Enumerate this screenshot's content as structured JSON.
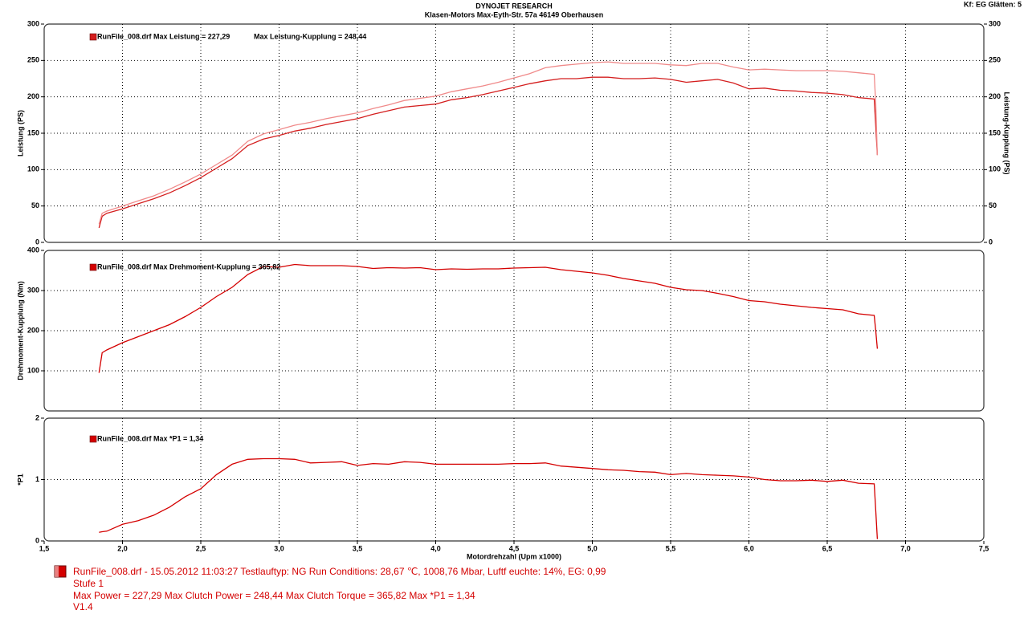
{
  "header": {
    "title": "DYNOJET RESEARCH",
    "subtitle": "Klasen-Motors   Max-Eyth-Str. 57a   46149 Oberhausen",
    "settings": "Kf: EG  Glätten: 5"
  },
  "chart_data": [
    {
      "type": "line",
      "ylabel": "Leistung (PS)",
      "y2label": "Leistung-Kupplung (PS)",
      "ylim": [
        0,
        300
      ],
      "yticks": [
        0,
        50,
        100,
        150,
        200,
        250,
        300
      ],
      "y2lim": [
        0,
        300
      ],
      "y2ticks": [
        0,
        50,
        100,
        150,
        200,
        250,
        300
      ],
      "grid": true,
      "x": [
        1.85,
        1.87,
        1.9,
        2.0,
        2.1,
        2.2,
        2.3,
        2.4,
        2.5,
        2.6,
        2.7,
        2.8,
        2.9,
        3.0,
        3.1,
        3.2,
        3.3,
        3.4,
        3.5,
        3.6,
        3.7,
        3.8,
        3.9,
        4.0,
        4.1,
        4.2,
        4.3,
        4.4,
        4.5,
        4.6,
        4.7,
        4.8,
        4.9,
        5.0,
        5.1,
        5.2,
        5.3,
        5.4,
        5.5,
        5.6,
        5.7,
        5.8,
        5.9,
        6.0,
        6.1,
        6.2,
        6.3,
        6.4,
        6.5,
        6.6,
        6.7,
        6.8,
        6.81,
        6.82
      ],
      "series": [
        {
          "name": "RunFile_008.drf Max Leistung = 227,29",
          "color": "#d41e1e",
          "values": [
            20,
            36,
            40,
            46,
            53,
            60,
            68,
            78,
            89,
            102,
            115,
            133,
            142,
            147,
            153,
            157,
            162,
            166,
            170,
            176,
            181,
            186,
            188,
            190,
            196,
            199,
            203,
            208,
            213,
            218,
            222,
            225,
            225,
            227,
            227,
            225,
            225,
            226,
            224,
            220,
            222,
            224,
            219,
            211,
            212,
            209,
            208,
            206,
            205,
            203,
            199,
            197,
            160,
            120
          ]
        },
        {
          "name": "Max Leistung-Kupplung = 248,44",
          "color": "#f08a8a",
          "axis": "y2",
          "values": [
            25,
            40,
            43,
            50,
            57,
            64,
            73,
            83,
            94,
            107,
            120,
            139,
            149,
            155,
            161,
            165,
            170,
            174,
            178,
            184,
            189,
            195,
            198,
            201,
            207,
            211,
            215,
            220,
            226,
            232,
            240,
            243,
            245,
            247,
            248,
            246,
            246,
            246,
            244,
            243,
            246,
            246,
            241,
            237,
            238,
            237,
            236,
            236,
            236,
            235,
            233,
            231,
            190,
            120
          ]
        }
      ]
    },
    {
      "type": "line",
      "ylabel": "Drehmoment-Kupplung (Nm)",
      "ylim": [
        0,
        400
      ],
      "yticks": [
        100,
        200,
        300,
        400
      ],
      "grid": true,
      "x": [
        1.85,
        1.87,
        1.9,
        2.0,
        2.1,
        2.2,
        2.3,
        2.4,
        2.5,
        2.6,
        2.7,
        2.8,
        2.9,
        3.0,
        3.1,
        3.2,
        3.3,
        3.4,
        3.5,
        3.6,
        3.7,
        3.8,
        3.9,
        4.0,
        4.1,
        4.2,
        4.3,
        4.4,
        4.5,
        4.6,
        4.7,
        4.8,
        4.9,
        5.0,
        5.1,
        5.2,
        5.3,
        5.4,
        5.5,
        5.6,
        5.7,
        5.8,
        5.9,
        6.0,
        6.1,
        6.2,
        6.3,
        6.4,
        6.5,
        6.6,
        6.7,
        6.8,
        6.81,
        6.82
      ],
      "series": [
        {
          "name": "RunFile_008.drf Max Drehmoment-Kupplung = 365,82",
          "color": "#d40000",
          "values": [
            95,
            145,
            152,
            170,
            185,
            200,
            215,
            235,
            258,
            285,
            308,
            340,
            360,
            358,
            365,
            362,
            362,
            362,
            360,
            355,
            357,
            356,
            357,
            352,
            354,
            353,
            354,
            354,
            356,
            357,
            358,
            352,
            348,
            344,
            338,
            330,
            324,
            318,
            308,
            302,
            300,
            293,
            285,
            275,
            272,
            266,
            262,
            258,
            255,
            252,
            242,
            238,
            200,
            155
          ]
        }
      ]
    },
    {
      "type": "line",
      "ylabel": "*P1",
      "xlabel": "Motordrehzahl (Upm x1000)",
      "ylim": [
        0,
        2
      ],
      "yticks": [
        0,
        1,
        2
      ],
      "grid": true,
      "xlim": [
        1.5,
        7.5
      ],
      "xticks": [
        {
          "value": 1.5,
          "label": "1,5"
        },
        {
          "value": 2,
          "label": "2,0"
        },
        {
          "value": 2.5,
          "label": "2,5"
        },
        {
          "value": 3,
          "label": "3,0"
        },
        {
          "value": 3.5,
          "label": "3,5"
        },
        {
          "value": 4,
          "label": "4,0"
        },
        {
          "value": 4.5,
          "label": "4,5"
        },
        {
          "value": 5,
          "label": "5,0"
        },
        {
          "value": 5.5,
          "label": "5,5"
        },
        {
          "value": 6,
          "label": "6,0"
        },
        {
          "value": 6.5,
          "label": "6,5"
        },
        {
          "value": 7,
          "label": "7,0"
        },
        {
          "value": 7.5,
          "label": "7,5"
        }
      ],
      "x": [
        1.85,
        1.87,
        1.9,
        2.0,
        2.1,
        2.2,
        2.3,
        2.4,
        2.5,
        2.6,
        2.7,
        2.8,
        2.9,
        3.0,
        3.1,
        3.2,
        3.3,
        3.4,
        3.5,
        3.6,
        3.7,
        3.8,
        3.9,
        4.0,
        4.1,
        4.2,
        4.3,
        4.4,
        4.5,
        4.6,
        4.7,
        4.8,
        4.9,
        5.0,
        5.1,
        5.2,
        5.3,
        5.4,
        5.5,
        5.6,
        5.7,
        5.8,
        5.9,
        6.0,
        6.1,
        6.2,
        6.3,
        6.4,
        6.5,
        6.6,
        6.7,
        6.8,
        6.81,
        6.82
      ],
      "series": [
        {
          "name": "RunFile_008.drf Max *P1 = 1,34",
          "color": "#d40000",
          "values": [
            0.14,
            0.15,
            0.16,
            0.27,
            0.33,
            0.42,
            0.55,
            0.72,
            0.85,
            1.08,
            1.25,
            1.33,
            1.34,
            1.34,
            1.33,
            1.27,
            1.28,
            1.29,
            1.23,
            1.26,
            1.25,
            1.29,
            1.28,
            1.25,
            1.25,
            1.25,
            1.25,
            1.25,
            1.26,
            1.26,
            1.27,
            1.22,
            1.2,
            1.18,
            1.16,
            1.15,
            1.13,
            1.12,
            1.08,
            1.1,
            1.08,
            1.07,
            1.06,
            1.04,
            1.0,
            0.98,
            0.98,
            0.99,
            0.97,
            0.99,
            0.94,
            0.93,
            0.5,
            0.03
          ]
        }
      ]
    }
  ],
  "footer": {
    "lines": [
      "RunFile_008.drf - 15.05.2012 11:03:27  Testlauftyp: NG  Run Conditions: 28,67 ℃, 1008,76 Mbar,  Luftf euchte: 14%, EG: 0,99",
      "Stufe 1",
      "Max Power = 227,29  Max Clutch Power = 248,44  Max Clutch Torque = 365,82  Max *P1 = 1,34",
      "V1.4"
    ]
  }
}
